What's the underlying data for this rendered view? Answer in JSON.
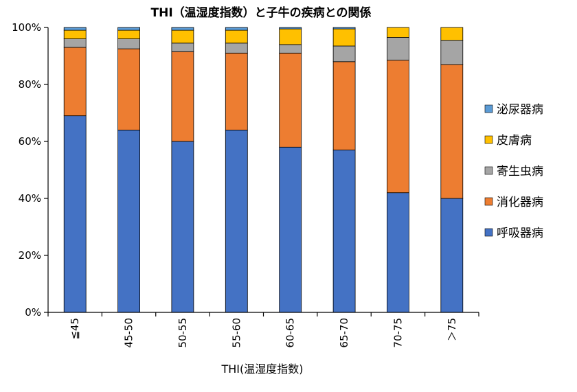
{
  "chart_data": {
    "type": "bar",
    "stacked": true,
    "title": "THI（温湿度指数）と子牛の疾病との関係",
    "xlabel": "THI(温湿度指数)",
    "ylabel": "",
    "ylim": [
      0,
      100
    ],
    "yticks": [
      "0%",
      "20%",
      "40%",
      "60%",
      "80%",
      "100%"
    ],
    "categories": [
      "≦45",
      "45-50",
      "50-55",
      "55-60",
      "60-65",
      "65-70",
      "70-75",
      "＞75"
    ],
    "series": [
      {
        "name": "呼吸器病",
        "color": "#4472C4",
        "values": [
          69,
          64,
          60,
          64,
          58,
          57,
          42,
          40
        ]
      },
      {
        "name": "消化器病",
        "color": "#ED7D31",
        "values": [
          24,
          28.5,
          31.5,
          27,
          33,
          31,
          46.5,
          47
        ]
      },
      {
        "name": "寄生虫病",
        "color": "#A5A5A5",
        "values": [
          3,
          3.5,
          3,
          3.5,
          3,
          5.5,
          8,
          8.5
        ]
      },
      {
        "name": "皮膚病",
        "color": "#FFC000",
        "values": [
          3,
          3,
          4.5,
          4.5,
          5.5,
          6,
          3.5,
          4.5
        ]
      },
      {
        "name": "泌尿器病",
        "color": "#5B9BD5",
        "values": [
          1,
          1,
          1,
          1,
          0.5,
          0.5,
          0,
          0
        ]
      }
    ],
    "legend_position": "right",
    "grid": false
  }
}
